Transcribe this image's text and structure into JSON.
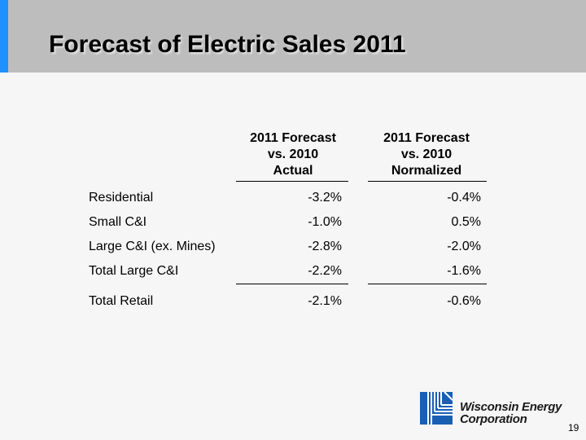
{
  "slide": {
    "title": "Forecast of Electric Sales 2011",
    "page_number": "19"
  },
  "table": {
    "columns": [
      {
        "line1": "2011 Forecast",
        "line2": "vs. 2010",
        "line3": "Actual"
      },
      {
        "line1": "2011 Forecast",
        "line2": "vs. 2010",
        "line3": "Normalized"
      }
    ],
    "rows": [
      {
        "label": "Residential",
        "actual": "-3.2%",
        "normalized": "-0.4%"
      },
      {
        "label": "Small C&I",
        "actual": "-1.0%",
        "normalized": "0.5%"
      },
      {
        "label": "Large C&I (ex. Mines)",
        "actual": "-2.8%",
        "normalized": "-2.0%"
      },
      {
        "label": "Total Large C&I",
        "actual": "-2.2%",
        "normalized": "-1.6%"
      },
      {
        "label": "Total Retail",
        "actual": "-2.1%",
        "normalized": "-0.6%"
      }
    ]
  },
  "logo": {
    "line1": "Wisconsin Energy",
    "line2": "Corporation",
    "color": "#1a5fb4"
  },
  "colors": {
    "title_bar": "#bdbdbd",
    "accent": "#1e90ff"
  }
}
